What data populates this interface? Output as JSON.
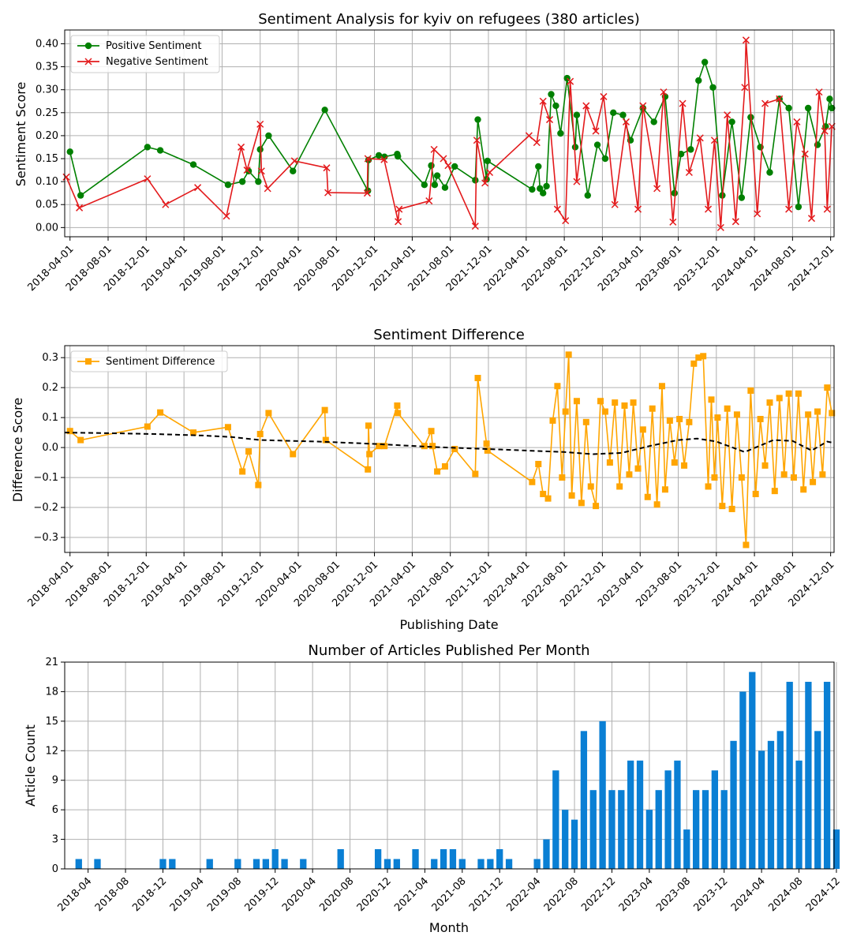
{
  "chart_data": [
    {
      "type": "line",
      "title": "Sentiment Analysis for kyiv on refugees (380 articles)",
      "xlabel": "",
      "ylabel": "Sentiment Score",
      "xlim": [
        "2018-03-15",
        "2024-12-12"
      ],
      "ylim": [
        -0.02,
        0.43
      ],
      "xticks": [
        "2018-04-01",
        "2018-08-01",
        "2018-12-01",
        "2019-04-01",
        "2019-08-01",
        "2019-12-01",
        "2020-04-01",
        "2020-08-01",
        "2020-12-01",
        "2021-04-01",
        "2021-08-01",
        "2021-12-01",
        "2022-04-01",
        "2022-08-01",
        "2022-12-01",
        "2023-04-01",
        "2023-08-01",
        "2023-12-01",
        "2024-04-01",
        "2024-08-01",
        "2024-12-01"
      ],
      "yticks": [
        "0.00",
        "0.05",
        "0.10",
        "0.15",
        "0.20",
        "0.25",
        "0.30",
        "0.35",
        "0.40"
      ],
      "grid": true,
      "legend": "top-left",
      "series": [
        {
          "name": "Positive Sentiment",
          "color": "#008000",
          "marker": "circle",
          "x": [
            "2018-04-01",
            "2018-05-05",
            "2018-12-05",
            "2019-01-15",
            "2019-05-01",
            "2019-08-20",
            "2019-10-05",
            "2019-10-25",
            "2019-11-25",
            "2019-12-01",
            "2019-12-28",
            "2020-03-15",
            "2020-06-25",
            "2020-11-10",
            "2020-11-12",
            "2020-12-15",
            "2021-01-02",
            "2021-02-12",
            "2021-02-14",
            "2021-05-10",
            "2021-06-01",
            "2021-06-12",
            "2021-06-20",
            "2021-07-15",
            "2021-08-15",
            "2021-10-20",
            "2021-10-28",
            "2021-11-25",
            "2021-11-28",
            "2022-04-20",
            "2022-05-10",
            "2022-05-15",
            "2022-05-25",
            "2022-06-05",
            "2022-06-20",
            "2022-07-05",
            "2022-07-20",
            "2022-08-10",
            "2022-09-05",
            "2022-09-10",
            "2022-10-15",
            "2022-11-15",
            "2022-12-10",
            "2023-01-05",
            "2023-02-05",
            "2023-03-01",
            "2023-04-10",
            "2023-05-15",
            "2023-06-20",
            "2023-07-20",
            "2023-08-10",
            "2023-09-10",
            "2023-10-05",
            "2023-10-25",
            "2023-11-20",
            "2023-12-20",
            "2024-01-20",
            "2024-02-20",
            "2024-03-20",
            "2024-04-20",
            "2024-05-20",
            "2024-06-20",
            "2024-07-20",
            "2024-08-20",
            "2024-09-20",
            "2024-10-20",
            "2024-11-15",
            "2024-11-28",
            "2024-12-05"
          ],
          "y": [
            0.165,
            0.07,
            0.175,
            0.168,
            0.137,
            0.093,
            0.1,
            0.123,
            0.1,
            0.17,
            0.2,
            0.123,
            0.256,
            0.08,
            0.147,
            0.157,
            0.154,
            0.16,
            0.155,
            0.093,
            0.135,
            0.093,
            0.113,
            0.087,
            0.133,
            0.103,
            0.235,
            0.105,
            0.145,
            0.083,
            0.133,
            0.085,
            0.075,
            0.09,
            0.29,
            0.265,
            0.205,
            0.325,
            0.175,
            0.245,
            0.07,
            0.18,
            0.15,
            0.25,
            0.245,
            0.19,
            0.26,
            0.23,
            0.285,
            0.075,
            0.16,
            0.17,
            0.32,
            0.36,
            0.305,
            0.07,
            0.23,
            0.065,
            0.24,
            0.175,
            0.12,
            0.28,
            0.26,
            0.045,
            0.26,
            0.18,
            0.22,
            0.28,
            0.26
          ]
        },
        {
          "name": "Negative Sentiment",
          "color": "#e31a1c",
          "marker": "x",
          "x": [
            "2018-03-20",
            "2018-05-01",
            "2018-12-05",
            "2019-02-01",
            "2019-05-15",
            "2019-08-15",
            "2019-10-01",
            "2019-10-20",
            "2019-12-01",
            "2019-12-05",
            "2019-12-25",
            "2020-03-20",
            "2020-07-01",
            "2020-07-05",
            "2020-11-08",
            "2020-11-10",
            "2021-01-01",
            "2021-02-15",
            "2021-02-18",
            "2021-05-25",
            "2021-06-10",
            "2021-07-10",
            "2021-07-25",
            "2021-10-20",
            "2021-10-25",
            "2021-11-20",
            "2021-12-05",
            "2022-04-10",
            "2022-05-05",
            "2022-05-25",
            "2022-06-15",
            "2022-07-10",
            "2022-08-05",
            "2022-08-20",
            "2022-09-10",
            "2022-10-10",
            "2022-11-10",
            "2022-12-05",
            "2023-01-10",
            "2023-02-15",
            "2023-03-25",
            "2023-04-10",
            "2023-05-25",
            "2023-06-15",
            "2023-07-15",
            "2023-08-15",
            "2023-09-05",
            "2023-10-10",
            "2023-11-05",
            "2023-11-25",
            "2023-12-15",
            "2024-01-05",
            "2024-02-01",
            "2024-03-01",
            "2024-03-05",
            "2024-04-10",
            "2024-05-05",
            "2024-06-20",
            "2024-07-20",
            "2024-08-15",
            "2024-09-10",
            "2024-10-01",
            "2024-10-25",
            "2024-11-12",
            "2024-11-20",
            "2024-12-05"
          ],
          "y": [
            0.11,
            0.043,
            0.106,
            0.05,
            0.087,
            0.025,
            0.175,
            0.125,
            0.225,
            0.123,
            0.085,
            0.145,
            0.13,
            0.076,
            0.075,
            0.15,
            0.148,
            0.013,
            0.04,
            0.058,
            0.17,
            0.15,
            0.135,
            0.003,
            0.19,
            0.097,
            0.12,
            0.2,
            0.185,
            0.275,
            0.235,
            0.04,
            0.015,
            0.318,
            0.1,
            0.265,
            0.21,
            0.285,
            0.05,
            0.23,
            0.04,
            0.265,
            0.085,
            0.295,
            0.012,
            0.27,
            0.12,
            0.195,
            0.04,
            0.19,
            0.0,
            0.245,
            0.013,
            0.305,
            0.408,
            0.03,
            0.27,
            0.28,
            0.04,
            0.23,
            0.16,
            0.02,
            0.295,
            0.21,
            0.04,
            0.22
          ]
        }
      ]
    },
    {
      "type": "line",
      "title": "Sentiment Difference",
      "xlabel": "Publishing Date",
      "ylabel": "Difference Score",
      "xlim": [
        "2018-03-15",
        "2024-12-12"
      ],
      "ylim": [
        -0.35,
        0.34
      ],
      "xticks": [
        "2018-04-01",
        "2018-08-01",
        "2018-12-01",
        "2019-04-01",
        "2019-08-01",
        "2019-12-01",
        "2020-04-01",
        "2020-08-01",
        "2020-12-01",
        "2021-04-01",
        "2021-08-01",
        "2021-12-01",
        "2022-04-01",
        "2022-08-01",
        "2022-12-01",
        "2023-04-01",
        "2023-08-01",
        "2023-12-01",
        "2024-04-01",
        "2024-08-01",
        "2024-12-01"
      ],
      "yticks": [
        "−0.3",
        "−0.2",
        "−0.1",
        "0.0",
        "0.1",
        "0.2",
        "0.3"
      ],
      "grid": true,
      "legend": "top-left",
      "series": [
        {
          "name": "Sentiment Difference",
          "color": "#ffa500",
          "marker": "square",
          "x": [
            "2018-04-01",
            "2018-05-05",
            "2018-12-05",
            "2019-01-15",
            "2019-05-01",
            "2019-08-20",
            "2019-10-05",
            "2019-10-25",
            "2019-11-25",
            "2019-12-01",
            "2019-12-28",
            "2020-03-15",
            "2020-06-25",
            "2020-06-28",
            "2020-11-10",
            "2020-11-12",
            "2020-11-15",
            "2020-12-15",
            "2021-01-02",
            "2021-02-12",
            "2021-02-14",
            "2021-05-10",
            "2021-06-01",
            "2021-06-05",
            "2021-06-20",
            "2021-07-15",
            "2021-08-15",
            "2021-10-20",
            "2021-10-28",
            "2021-11-25",
            "2021-11-28",
            "2022-04-20",
            "2022-05-10",
            "2022-05-25",
            "2022-06-10",
            "2022-06-25",
            "2022-07-10",
            "2022-07-25",
            "2022-08-05",
            "2022-08-15",
            "2022-08-25",
            "2022-09-10",
            "2022-09-25",
            "2022-10-10",
            "2022-10-25",
            "2022-11-10",
            "2022-11-25",
            "2022-12-10",
            "2022-12-25",
            "2023-01-10",
            "2023-01-25",
            "2023-02-10",
            "2023-02-25",
            "2023-03-10",
            "2023-03-25",
            "2023-04-10",
            "2023-04-25",
            "2023-05-10",
            "2023-05-25",
            "2023-06-10",
            "2023-06-20",
            "2023-07-05",
            "2023-07-20",
            "2023-08-05",
            "2023-08-20",
            "2023-09-05",
            "2023-09-20",
            "2023-10-05",
            "2023-10-20",
            "2023-11-05",
            "2023-11-15",
            "2023-11-25",
            "2023-12-05",
            "2023-12-20",
            "2024-01-05",
            "2024-01-20",
            "2024-02-05",
            "2024-02-20",
            "2024-03-05",
            "2024-03-20",
            "2024-04-05",
            "2024-04-20",
            "2024-05-05",
            "2024-05-20",
            "2024-06-05",
            "2024-06-20",
            "2024-07-05",
            "2024-07-20",
            "2024-08-05",
            "2024-08-20",
            "2024-09-05",
            "2024-09-20",
            "2024-10-05",
            "2024-10-20",
            "2024-11-05",
            "2024-11-20",
            "2024-12-05"
          ],
          "y": [
            0.055,
            0.025,
            0.07,
            0.117,
            0.05,
            0.068,
            -0.08,
            -0.013,
            -0.125,
            0.045,
            0.115,
            -0.022,
            0.125,
            0.025,
            -0.073,
            0.073,
            -0.022,
            0.005,
            0.005,
            0.14,
            0.115,
            0.005,
            0.055,
            0.005,
            -0.08,
            -0.063,
            -0.005,
            -0.088,
            0.232,
            0.013,
            -0.01,
            -0.115,
            -0.055,
            -0.155,
            -0.17,
            0.09,
            0.205,
            -0.1,
            0.12,
            0.31,
            -0.16,
            0.155,
            -0.185,
            0.085,
            -0.13,
            -0.195,
            0.155,
            0.12,
            -0.05,
            0.15,
            -0.13,
            0.14,
            -0.09,
            0.15,
            -0.07,
            0.06,
            -0.165,
            0.13,
            -0.19,
            0.205,
            -0.14,
            0.09,
            -0.05,
            0.095,
            -0.06,
            0.085,
            0.28,
            0.3,
            0.305,
            -0.13,
            0.16,
            -0.1,
            0.1,
            -0.195,
            0.13,
            -0.205,
            0.11,
            -0.1,
            -0.325,
            0.19,
            -0.155,
            0.095,
            -0.06,
            0.15,
            -0.145,
            0.165,
            -0.09,
            0.18,
            -0.1,
            0.18,
            -0.14,
            0.11,
            -0.115,
            0.12,
            -0.09,
            0.2,
            0.115
          ]
        },
        {
          "name": "",
          "color": "#000000",
          "style": "dashed",
          "x": [
            "2018-03-15",
            "2018-08-01",
            "2019-01-01",
            "2019-06-01",
            "2019-09-01",
            "2019-12-01",
            "2020-06-01",
            "2020-12-01",
            "2021-06-01",
            "2021-12-01",
            "2022-04-01",
            "2022-08-01",
            "2022-11-01",
            "2023-02-01",
            "2023-05-01",
            "2023-08-01",
            "2023-10-01",
            "2023-12-01",
            "2024-03-01",
            "2024-06-01",
            "2024-08-01",
            "2024-10-01",
            "2024-11-20",
            "2024-12-12"
          ],
          "y": [
            0.05,
            0.048,
            0.045,
            0.04,
            0.035,
            0.025,
            0.02,
            0.012,
            0.002,
            -0.005,
            -0.01,
            -0.015,
            -0.022,
            -0.018,
            0.005,
            0.025,
            0.03,
            0.02,
            -0.015,
            0.025,
            0.022,
            -0.01,
            0.02,
            0.015
          ]
        }
      ]
    },
    {
      "type": "bar",
      "title": "Number of Articles Published Per Month",
      "xlabel": "Month",
      "ylabel": "Article Count",
      "ylim": [
        0,
        21
      ],
      "yticks": [
        "0",
        "3",
        "6",
        "9",
        "12",
        "15",
        "18",
        "21"
      ],
      "xticks": [
        "2018-04",
        "2018-08",
        "2018-12",
        "2019-04",
        "2019-08",
        "2019-12",
        "2020-04",
        "2020-08",
        "2020-12",
        "2021-04",
        "2021-08",
        "2021-12",
        "2022-04",
        "2022-08",
        "2022-12",
        "2023-04",
        "2023-08",
        "2023-12",
        "2024-04",
        "2024-08",
        "2024-12"
      ],
      "grid": true,
      "color": "#0a7fd4",
      "categories": [
        "2018-03",
        "2018-05",
        "2018-12",
        "2019-01",
        "2019-05",
        "2019-08",
        "2019-10",
        "2019-11",
        "2019-12",
        "2020-01",
        "2020-03",
        "2020-07",
        "2020-11",
        "2020-12",
        "2021-01",
        "2021-03",
        "2021-05",
        "2021-06",
        "2021-07",
        "2021-08",
        "2021-10",
        "2021-11",
        "2021-12",
        "2022-01",
        "2022-04",
        "2022-05",
        "2022-06",
        "2022-07",
        "2022-08",
        "2022-09",
        "2022-10",
        "2022-11",
        "2022-12",
        "2023-01",
        "2023-02",
        "2023-03",
        "2023-04",
        "2023-05",
        "2023-06",
        "2023-07",
        "2023-08",
        "2023-09",
        "2023-10",
        "2023-11",
        "2023-12",
        "2024-01",
        "2024-02",
        "2024-03",
        "2024-04",
        "2024-05",
        "2024-06",
        "2024-07",
        "2024-08",
        "2024-09",
        "2024-10",
        "2024-11",
        "2024-12"
      ],
      "values": [
        1,
        1,
        1,
        1,
        1,
        1,
        1,
        1,
        2,
        1,
        1,
        2,
        2,
        1,
        1,
        2,
        1,
        2,
        2,
        1,
        1,
        1,
        2,
        1,
        1,
        3,
        10,
        6,
        5,
        14,
        8,
        15,
        8,
        8,
        11,
        11,
        6,
        8,
        10,
        11,
        4,
        8,
        8,
        10,
        8,
        13,
        18,
        20,
        12,
        13,
        14,
        19,
        11,
        19,
        14,
        19,
        4
      ]
    }
  ]
}
